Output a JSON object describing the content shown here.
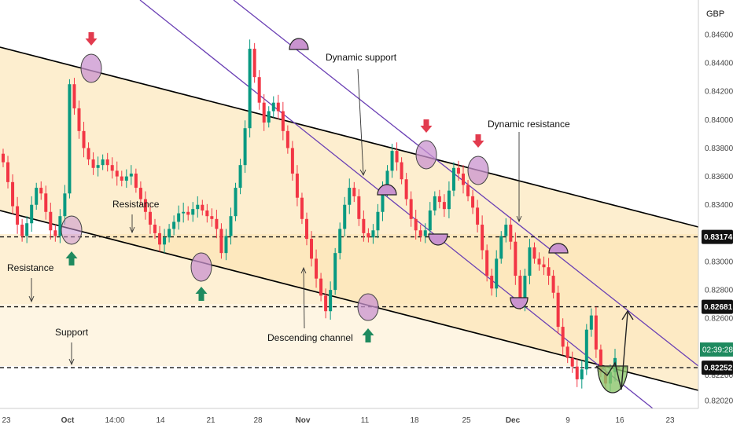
{
  "chart_data": {
    "type": "candlestick",
    "currency": "GBP",
    "ylim": [
      0.8195,
      0.847
    ],
    "y_ticks": [
      "0.84600",
      "0.84400",
      "0.84200",
      "0.84000",
      "0.83800",
      "0.83600",
      "0.83400",
      "0.83000",
      "0.82800",
      "0.82600",
      "0.82200",
      "0.82020"
    ],
    "x_tick_labels": [
      "23",
      "Oct",
      "14:00",
      "14",
      "21",
      "28",
      "Nov",
      "11",
      "18",
      "25",
      "Dec",
      "9",
      "16",
      "23"
    ],
    "levels": [
      {
        "label": "0.83174",
        "value": 0.83174
      },
      {
        "label": "0.82681",
        "value": 0.82681
      },
      {
        "label": "0.82252",
        "value": 0.82252
      }
    ],
    "countdown": "02:39:28",
    "current_price": 0.8238,
    "colors": {
      "up": "#089981",
      "down": "#f23645",
      "channel": "#000000",
      "dynamic": "#6a3fb4",
      "arrow_up": "#1f8a5f",
      "arrow_down": "#e23b4e",
      "highlight": "#c993cf",
      "green_zone": "#8cc56b",
      "bg_band": "#fde6b8"
    },
    "annotations": [
      "Dynamic support",
      "Dynamic resistance",
      "Resistance",
      "Resistance",
      "Support",
      "Descending channel"
    ],
    "series": [
      {
        "type": "close",
        "values": [
          0.837,
          0.8356,
          0.8339,
          0.8326,
          0.8318,
          0.8327,
          0.834,
          0.8352,
          0.8348,
          0.8335,
          0.8322,
          0.8318,
          0.8332,
          0.8348,
          0.8425,
          0.8408,
          0.8392,
          0.838,
          0.8372,
          0.8366,
          0.8368,
          0.8372,
          0.8368,
          0.8364,
          0.836,
          0.8357,
          0.836,
          0.8362,
          0.8352,
          0.8344,
          0.8335,
          0.8326,
          0.832,
          0.8312,
          0.8317,
          0.8323,
          0.8328,
          0.8334,
          0.8335,
          0.8333,
          0.8337,
          0.834,
          0.8336,
          0.8332,
          0.833,
          0.8323,
          0.8306,
          0.8318,
          0.8332,
          0.8352,
          0.8368,
          0.8394,
          0.845,
          0.843,
          0.8412,
          0.8398,
          0.8406,
          0.8412,
          0.8406,
          0.8392,
          0.838,
          0.8362,
          0.8345,
          0.833,
          0.8316,
          0.8302,
          0.8288,
          0.8276,
          0.8265,
          0.828,
          0.8306,
          0.8323,
          0.834,
          0.8352,
          0.8346,
          0.833,
          0.832,
          0.8317,
          0.8322,
          0.8335,
          0.835,
          0.8364,
          0.8378,
          0.837,
          0.8358,
          0.8344,
          0.833,
          0.8322,
          0.8318,
          0.8322,
          0.8336,
          0.8346,
          0.8342,
          0.8337,
          0.835,
          0.8366,
          0.8362,
          0.8354,
          0.8346,
          0.8338,
          0.8326,
          0.8308,
          0.829,
          0.8281,
          0.8302,
          0.8318,
          0.8326,
          0.8314,
          0.829,
          0.827,
          0.829,
          0.831,
          0.8302,
          0.8298,
          0.8296,
          0.829,
          0.8278,
          0.8254,
          0.824,
          0.8232,
          0.8226,
          0.8217,
          0.8224,
          0.8252,
          0.8262,
          0.8238,
          0.8222,
          0.8214,
          0.8222,
          0.8232
        ]
      }
    ]
  }
}
